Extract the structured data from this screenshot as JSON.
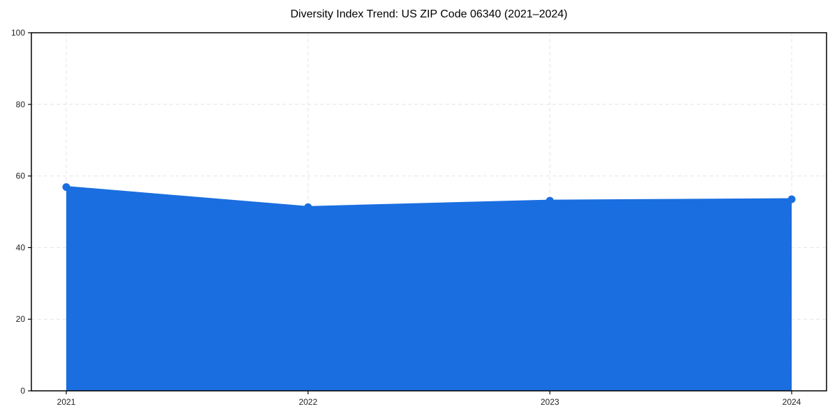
{
  "page": {
    "background": "#ffffff"
  },
  "chart_data": {
    "type": "line",
    "title": "Diversity Index Trend: US ZIP Code 06340 (2021–2024)",
    "categories": [
      "2021",
      "2022",
      "2023",
      "2024"
    ],
    "values": [
      56.9,
      51.3,
      53.1,
      53.5
    ],
    "xlabel": "",
    "ylabel": "",
    "ylim": [
      0,
      100
    ],
    "yticks": [
      0,
      20,
      40,
      60,
      80,
      100
    ],
    "grid": "dashed-both-axes",
    "legend": "none",
    "area_fill": true,
    "marker": "circle",
    "colors": {
      "line": "#1a6ee0",
      "marker": "#1a6ee0",
      "fill": "#1a6ee0",
      "fill_opacity": 0.12,
      "grid": "#e4e4e4",
      "axis": "#000000",
      "tick_label": "#222222",
      "title": "#000000"
    }
  }
}
